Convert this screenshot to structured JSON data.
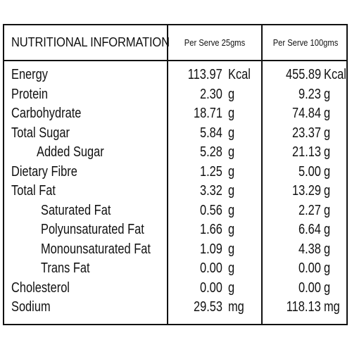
{
  "header": {
    "title": "NUTRITIONAL INFORMATION",
    "col1": "Per Serve 25gms",
    "col2": "Per Serve 100gms"
  },
  "rows": [
    {
      "label": "Energy",
      "v1": "113.97",
      "u1": "Kcal",
      "v2": "455.89",
      "u2": "Kcal",
      "indent": 0
    },
    {
      "label": "Protein",
      "v1": "2.30",
      "u1": "g",
      "v2": "9.23",
      "u2": "g",
      "indent": 0
    },
    {
      "label": "Carbohydrate",
      "v1": "18.71",
      "u1": "g",
      "v2": "74.84",
      "u2": "g",
      "indent": 0
    },
    {
      "label": "Total Sugar",
      "v1": "5.84",
      "u1": "g",
      "v2": "23.37",
      "u2": "g",
      "indent": 0
    },
    {
      "label": "Added Sugar",
      "v1": "5.28",
      "u1": "g",
      "v2": "21.13",
      "u2": "g",
      "indent": 1
    },
    {
      "label": "Dietary Fibre",
      "v1": "1.25",
      "u1": "g",
      "v2": "5.00",
      "u2": "g",
      "indent": 0
    },
    {
      "label": "Total Fat",
      "v1": "3.32",
      "u1": "g",
      "v2": "13.29",
      "u2": "g",
      "indent": 0
    },
    {
      "label": "Saturated Fat",
      "v1": "0.56",
      "u1": "g",
      "v2": "2.27",
      "u2": "g",
      "indent": 2
    },
    {
      "label": "Polyunsaturated Fat",
      "v1": "1.66",
      "u1": "g",
      "v2": "6.64",
      "u2": "g",
      "indent": 2
    },
    {
      "label": "Monounsaturated Fat",
      "v1": "1.09",
      "u1": "g",
      "v2": "4.38",
      "u2": "g",
      "indent": 2
    },
    {
      "label": "Trans Fat",
      "v1": "0.00",
      "u1": "g",
      "v2": "0.00",
      "u2": "g",
      "indent": 2
    },
    {
      "label": "Cholesterol",
      "v1": "0.00",
      "u1": "g",
      "v2": "0.00",
      "u2": "g",
      "indent": 0
    },
    {
      "label": "Sodium",
      "v1": "29.53",
      "u1": "mg",
      "v2": "118.13",
      "u2": "mg",
      "indent": 0
    }
  ]
}
